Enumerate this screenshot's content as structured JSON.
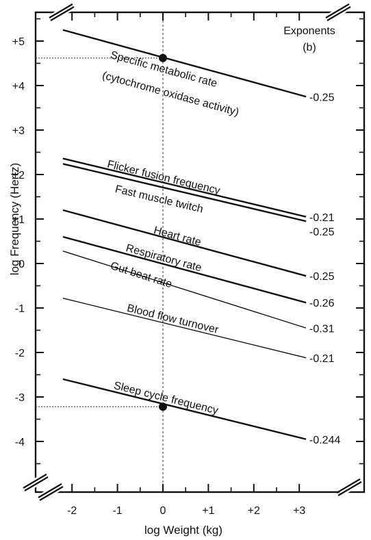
{
  "chart_data": {
    "type": "line",
    "title": "",
    "xlabel": "log  Weight  (kg)",
    "ylabel": "log Frequency  (Hertz)",
    "xlim": [
      -2.5,
      3.75
    ],
    "ylim": [
      -5.3,
      5.75
    ],
    "x_ticks": [
      -2,
      -1,
      0,
      1,
      2,
      3
    ],
    "x_tick_labels": [
      "-2",
      "-1",
      "0",
      "+1",
      "+2",
      "+3"
    ],
    "y_ticks": [
      5,
      4,
      3,
      2,
      1,
      0,
      -1,
      -2,
      -3,
      -4
    ],
    "y_tick_labels": [
      "+5",
      "+4",
      "+3",
      "+2",
      "+1",
      "0",
      "-1",
      "-2",
      "-3",
      "-4"
    ],
    "exponents_header": [
      "Exponents",
      "(b)"
    ],
    "grid": false,
    "series": [
      {
        "name": "Specific metabolic rate (cytochrome oxidase activity)",
        "label_lines": [
          "Specific  metabolic  rate",
          "(cytochrome   oxidase   activity)"
        ],
        "exponent": "-0.25",
        "x": [
          -2.2,
          3.15
        ],
        "y": [
          5.25,
          3.75
        ],
        "bold": true
      },
      {
        "name": "Flicker fusion frequency",
        "label_lines": [
          "Flicker      fusion      frequency"
        ],
        "exponent": "-0.21",
        "x": [
          -2.2,
          3.15
        ],
        "y": [
          2.36,
          1.05
        ],
        "bold": true
      },
      {
        "name": "Fast muscle twitch",
        "label_lines": [
          "Fast    muscle    twitch"
        ],
        "exponent": "-0.25",
        "x": [
          -2.2,
          3.15
        ],
        "y": [
          2.24,
          0.95
        ],
        "bold": true
      },
      {
        "name": "Heart rate",
        "label_lines": [
          "Heart    rate"
        ],
        "exponent": "-0.25",
        "x": [
          -2.2,
          3.15
        ],
        "y": [
          1.2,
          -0.28
        ],
        "bold": true
      },
      {
        "name": "Respiratory rate",
        "label_lines": [
          "Respiratory  rate"
        ],
        "exponent": "-0.26",
        "x": [
          -2.2,
          3.15
        ],
        "y": [
          0.6,
          -0.88
        ],
        "bold": true
      },
      {
        "name": "Gut beat rate",
        "label_lines": [
          "Gut  beat  rate"
        ],
        "exponent": "-0.31",
        "x": [
          -2.2,
          3.15
        ],
        "y": [
          0.28,
          -1.45
        ],
        "bold": false
      },
      {
        "name": "Blood flow turnover",
        "label_lines": [
          "Blood   flow   turnover"
        ],
        "exponent": "-0.21",
        "x": [
          -2.2,
          3.15
        ],
        "y": [
          -0.78,
          -2.12
        ],
        "bold": false
      },
      {
        "name": "Sleep cycle frequency",
        "label_lines": [
          "Sleep    cycle    frequency"
        ],
        "exponent": "-0.244",
        "x": [
          -2.2,
          3.15
        ],
        "y": [
          -2.6,
          -3.95
        ],
        "bold": true
      }
    ],
    "highlight_points": [
      {
        "x": 0,
        "y": 4.62
      },
      {
        "x": 0,
        "y": -3.22
      }
    ]
  }
}
